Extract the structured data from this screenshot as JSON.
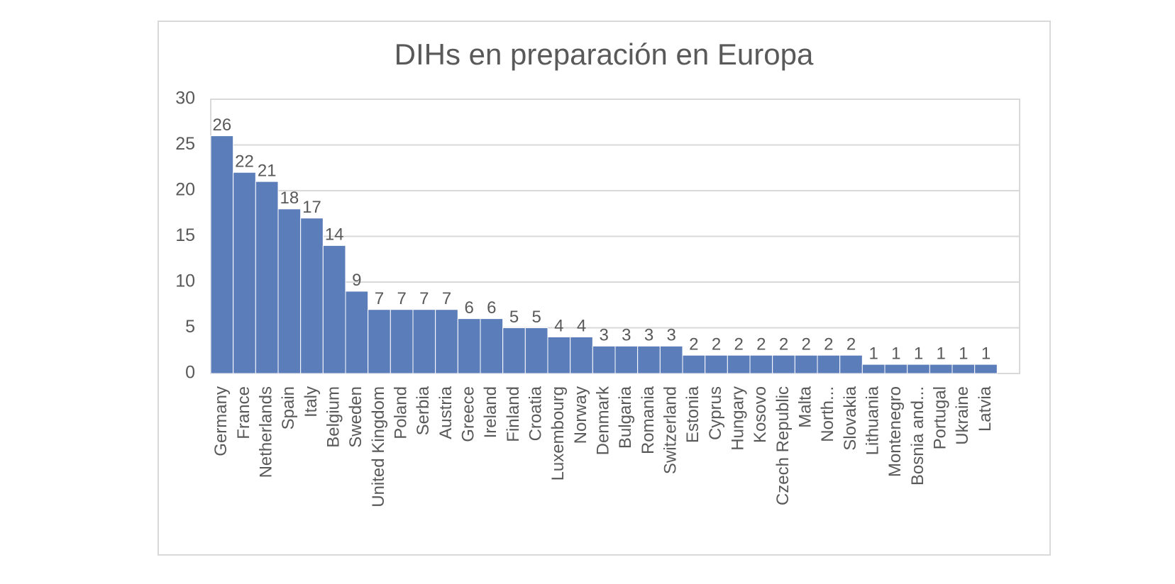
{
  "chart_data": {
    "type": "bar",
    "title": "DIHs en preparación en Europa",
    "categories": [
      "Germany",
      "France",
      "Netherlands",
      "Spain",
      "Italy",
      "Belgium",
      "Sweden",
      "United Kingdom",
      "Poland",
      "Serbia",
      "Austria",
      "Greece",
      "Ireland",
      "Finland",
      "Croatia",
      "Luxembourg",
      "Norway",
      "Denmark",
      "Bulgaria",
      "Romania",
      "Switzerland",
      "Estonia",
      "Cyprus",
      "Hungary",
      "Kosovo",
      "Czech Republic",
      "Malta",
      "North...",
      "Slovakia",
      "Lithuania",
      "Montenegro",
      "Bosnia and...",
      "Portugal",
      "Ukraine",
      "Latvia"
    ],
    "values": [
      26,
      22,
      21,
      18,
      17,
      14,
      9,
      7,
      7,
      7,
      7,
      6,
      6,
      5,
      5,
      4,
      4,
      3,
      3,
      3,
      3,
      2,
      2,
      2,
      2,
      2,
      2,
      2,
      2,
      1,
      1,
      1,
      1,
      1,
      1
    ],
    "color": "#5b7dba",
    "ylim": [
      0,
      30
    ],
    "yticks": [
      0,
      5,
      10,
      15,
      20,
      25,
      30
    ],
    "grid": true
  }
}
